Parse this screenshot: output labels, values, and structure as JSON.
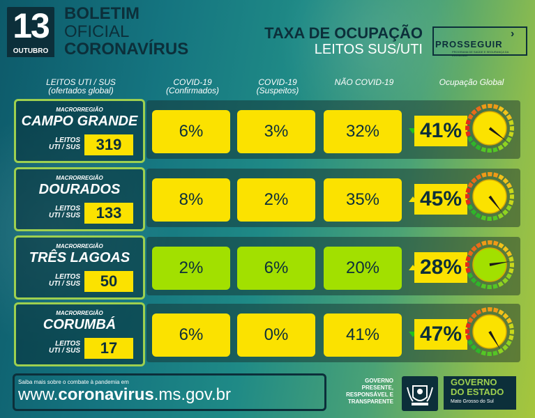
{
  "header": {
    "day": "13",
    "month": "OUTUBRO",
    "line1": "BOLETIM",
    "line2": "OFICIAL",
    "line3": "CORONAVÍRUS",
    "title": "TAXA DE OCUPAÇÃO",
    "subtitle": "LEITOS SUS/UTI",
    "brand": "PROSSEGUIR",
    "brand_sub": "PROGRAMA DE SAÚDE E SEGURANÇA DA ECONOMIA"
  },
  "columns": {
    "c0a": "LEITOS UTI / SUS",
    "c0b": "(ofertados global)",
    "c1a": "COVID-19",
    "c1b": "(Confirmados)",
    "c2a": "COVID-19",
    "c2b": "(Suspeitos)",
    "c3a": "NÃO COVID-19",
    "c4a": "Ocupação Global"
  },
  "rows": [
    {
      "macro": "MACRORREGIÃO",
      "name": "CAMPO GRANDE",
      "leitos_label1": "LEITOS",
      "leitos_label2": "UTI / SUS",
      "leitos": "319",
      "confirmados": "6%",
      "suspeitos": "3%",
      "nao_covid": "32%",
      "global": "41%",
      "trend": "down",
      "fill": 0.41,
      "colors": [
        "yellow",
        "yellow",
        "yellow"
      ]
    },
    {
      "macro": "MACRORREGIÃO",
      "name": "DOURADOS",
      "leitos_label1": "LEITOS",
      "leitos_label2": "UTI / SUS",
      "leitos": "133",
      "confirmados": "8%",
      "suspeitos": "2%",
      "nao_covid": "35%",
      "global": "45%",
      "trend": "up",
      "fill": 0.45,
      "colors": [
        "yellow",
        "yellow",
        "yellow"
      ]
    },
    {
      "macro": "MACRORREGIÃO",
      "name": "TRÊS LAGOAS",
      "leitos_label1": "LEITOS",
      "leitos_label2": "UTI / SUS",
      "leitos": "50",
      "confirmados": "2%",
      "suspeitos": "6%",
      "nao_covid": "20%",
      "global": "28%",
      "trend": "up",
      "fill": 0.28,
      "colors": [
        "green",
        "green",
        "green"
      ]
    },
    {
      "macro": "MACRORREGIÃO",
      "name": "CORUMBÁ",
      "leitos_label1": "LEITOS",
      "leitos_label2": "UTI / SUS",
      "leitos": "17",
      "confirmados": "6%",
      "suspeitos": "0%",
      "nao_covid": "41%",
      "global": "47%",
      "trend": "down",
      "fill": 0.47,
      "colors": [
        "yellow",
        "yellow",
        "yellow"
      ]
    }
  ],
  "footer": {
    "small": "Saiba mais sobre o combate à pandemia em",
    "url_pre": "www.",
    "url_bold": "coronavirus",
    "url_post": ".ms.gov.br",
    "gov_slogan": [
      "GOVERNO",
      "PRESENTE,",
      "RESPONSÁVEL E",
      "TRANSPARENTE"
    ],
    "gov_name1": "GOVERNO",
    "gov_name2": "DO ESTADO",
    "gov_state": "Mato Grosso do Sul"
  },
  "colors": {
    "yellow": "#fbe200",
    "green": "#a2e000",
    "dark": "#0c2f3a",
    "accent": "#9ed04f"
  }
}
